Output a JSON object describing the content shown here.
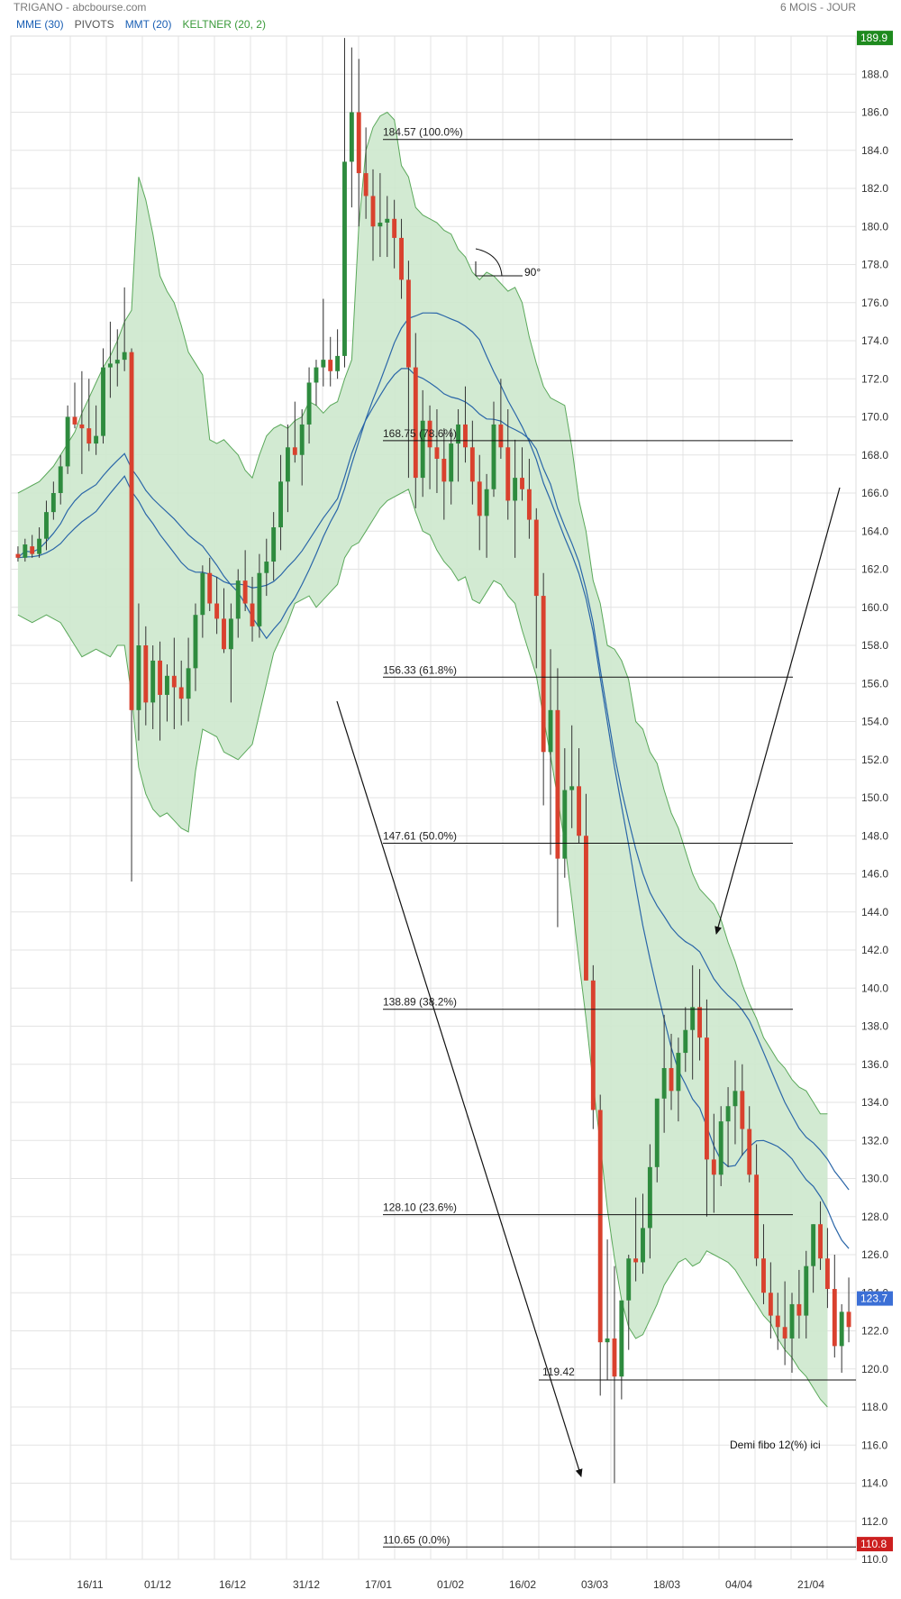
{
  "header": {
    "title": "TRIGANO - abcbourse.com",
    "period": "6 MOIS - JOUR"
  },
  "legend": [
    {
      "label": "MME (30)",
      "color": "#1a5fb4"
    },
    {
      "label": "PIVOTS",
      "color": "#555555"
    },
    {
      "label": "MMT (20)",
      "color": "#1a5fb4"
    },
    {
      "label": "KELTNER (20, 2)",
      "color": "#3a9a3a"
    }
  ],
  "colors": {
    "up": "#2e8b3e",
    "down": "#d9412e",
    "band_fill": "#cde8cd",
    "band_line": "#5aa85a",
    "ma_line": "#2a66a8",
    "grid": "#e3e3e3"
  },
  "chart_data": {
    "type": "candlestick",
    "ylim": [
      110,
      190
    ],
    "x_ticks": [
      "16/11",
      "01/12",
      "16/12",
      "31/12",
      "17/01",
      "01/02",
      "16/02",
      "03/03",
      "18/03",
      "04/04",
      "21/04"
    ],
    "y_ticks": [
      "110.0",
      "112.0",
      "114.0",
      "116.0",
      "118.0",
      "120.0",
      "122.0",
      "124.0",
      "126.0",
      "128.0",
      "130.0",
      "132.0",
      "134.0",
      "136.0",
      "138.0",
      "140.0",
      "142.0",
      "144.0",
      "146.0",
      "148.0",
      "150.0",
      "152.0",
      "154.0",
      "156.0",
      "158.0",
      "160.0",
      "162.0",
      "164.0",
      "166.0",
      "168.0",
      "170.0",
      "172.0",
      "174.0",
      "176.0",
      "178.0",
      "180.0",
      "182.0",
      "184.0",
      "186.0",
      "188.0"
    ],
    "price_badges": [
      {
        "label": "189.9",
        "value": 189.9,
        "color": "#1e8a1e"
      },
      {
        "label": "123.7",
        "value": 123.7,
        "color": "#3b6fd6"
      },
      {
        "label": "110.8",
        "value": 110.8,
        "color": "#cc1f1f"
      }
    ],
    "fib_levels": [
      {
        "value": 184.57,
        "label": "184.57  (100.0%)"
      },
      {
        "value": 168.75,
        "label": "168.75  (78.6%)"
      },
      {
        "value": 156.33,
        "label": "156.33  (61.8%)"
      },
      {
        "value": 147.61,
        "label": "147.61  (50.0%)"
      },
      {
        "value": 138.89,
        "label": "138.89  (38.2%)"
      },
      {
        "value": 128.1,
        "label": "128.10  (23.6%)"
      },
      {
        "value": 110.65,
        "label": "110.65  (0.0%)"
      }
    ],
    "support_line": {
      "value": 119.42,
      "label": "119.42"
    },
    "annotations": {
      "angle_label": "90°",
      "note": "Demi fibo 12(%) ici"
    },
    "candles": [
      [
        162.8,
        163.2,
        162.4,
        162.6
      ],
      [
        162.6,
        163.6,
        162.4,
        163.3
      ],
      [
        163.2,
        163.8,
        162.6,
        162.8
      ],
      [
        162.8,
        164.2,
        162.6,
        163.6
      ],
      [
        163.6,
        165.6,
        163.0,
        165.0
      ],
      [
        165.0,
        166.6,
        164.6,
        166.0
      ],
      [
        166.0,
        168.0,
        165.4,
        167.4
      ],
      [
        167.4,
        170.6,
        167.0,
        170.0
      ],
      [
        170.0,
        171.8,
        169.4,
        169.6
      ],
      [
        169.6,
        172.4,
        167.0,
        169.4
      ],
      [
        169.4,
        172.0,
        168.2,
        168.6
      ],
      [
        168.6,
        170.6,
        168.0,
        169.0
      ],
      [
        169.0,
        173.6,
        168.6,
        172.6
      ],
      [
        172.6,
        175.0,
        171.0,
        172.8
      ],
      [
        172.8,
        174.6,
        171.6,
        173.0
      ],
      [
        173.0,
        176.8,
        172.4,
        173.4
      ],
      [
        173.4,
        173.6,
        145.6,
        154.6
      ],
      [
        154.6,
        160.2,
        153.0,
        158.0
      ],
      [
        158.0,
        159.0,
        153.8,
        155.0
      ],
      [
        155.0,
        158.0,
        153.6,
        157.2
      ],
      [
        157.2,
        158.2,
        153.0,
        155.4
      ],
      [
        155.4,
        157.0,
        154.0,
        156.4
      ],
      [
        156.4,
        158.4,
        153.6,
        155.8
      ],
      [
        155.8,
        157.2,
        153.8,
        155.2
      ],
      [
        155.2,
        158.4,
        154.0,
        156.8
      ],
      [
        156.8,
        160.2,
        155.6,
        159.6
      ],
      [
        159.6,
        162.2,
        158.4,
        161.8
      ],
      [
        161.8,
        162.6,
        159.8,
        160.2
      ],
      [
        160.2,
        161.6,
        158.6,
        159.4
      ],
      [
        159.4,
        161.0,
        157.6,
        157.8
      ],
      [
        157.8,
        160.2,
        155.0,
        159.4
      ],
      [
        159.4,
        162.0,
        158.4,
        161.4
      ],
      [
        161.4,
        163.0,
        159.8,
        160.2
      ],
      [
        160.2,
        161.6,
        158.2,
        159.0
      ],
      [
        159.0,
        162.8,
        158.4,
        161.8
      ],
      [
        161.8,
        163.6,
        160.6,
        162.4
      ],
      [
        162.4,
        165.0,
        161.4,
        164.2
      ],
      [
        164.2,
        168.0,
        163.0,
        166.6
      ],
      [
        166.6,
        169.6,
        165.0,
        168.4
      ],
      [
        168.4,
        170.8,
        167.6,
        168.0
      ],
      [
        168.0,
        170.4,
        166.4,
        169.6
      ],
      [
        169.6,
        172.6,
        168.6,
        171.8
      ],
      [
        171.8,
        173.0,
        170.6,
        172.6
      ],
      [
        172.6,
        176.2,
        171.6,
        173.0
      ],
      [
        173.0,
        174.2,
        171.6,
        172.4
      ],
      [
        172.4,
        174.6,
        172.0,
        173.2
      ],
      [
        173.2,
        189.9,
        172.6,
        183.4
      ],
      [
        183.4,
        189.4,
        181.0,
        186.0
      ],
      [
        186.0,
        188.8,
        180.0,
        182.8
      ],
      [
        182.8,
        185.2,
        180.4,
        181.6
      ],
      [
        181.6,
        183.0,
        178.2,
        180.0
      ],
      [
        180.0,
        182.8,
        178.4,
        180.2
      ],
      [
        180.2,
        181.6,
        178.4,
        180.4
      ],
      [
        180.4,
        181.4,
        177.8,
        179.4
      ],
      [
        179.4,
        180.4,
        176.2,
        177.2
      ],
      [
        177.2,
        178.2,
        166.8,
        172.6
      ],
      [
        172.6,
        174.4,
        165.2,
        166.8
      ],
      [
        166.8,
        171.4,
        165.8,
        169.8
      ],
      [
        169.8,
        170.6,
        166.2,
        168.4
      ],
      [
        168.4,
        170.4,
        166.0,
        167.8
      ],
      [
        167.8,
        169.4,
        164.6,
        166.6
      ],
      [
        166.6,
        169.4,
        165.4,
        168.6
      ],
      [
        168.6,
        170.4,
        166.6,
        169.6
      ],
      [
        169.6,
        171.6,
        167.6,
        168.4
      ],
      [
        168.4,
        169.8,
        165.4,
        166.6
      ],
      [
        166.6,
        168.0,
        163.0,
        164.8
      ],
      [
        164.8,
        167.0,
        162.6,
        166.2
      ],
      [
        166.2,
        170.8,
        165.8,
        169.6
      ],
      [
        169.6,
        172.0,
        167.8,
        168.4
      ],
      [
        168.4,
        170.4,
        164.6,
        165.6
      ],
      [
        165.6,
        168.8,
        162.6,
        166.8
      ],
      [
        166.8,
        168.4,
        165.6,
        166.2
      ],
      [
        166.2,
        167.8,
        163.6,
        164.6
      ],
      [
        164.6,
        165.2,
        156.8,
        160.6
      ],
      [
        160.6,
        161.8,
        149.6,
        152.4
      ],
      [
        152.4,
        157.8,
        147.0,
        154.6
      ],
      [
        154.6,
        156.8,
        143.2,
        146.8
      ],
      [
        146.8,
        152.6,
        145.8,
        150.4
      ],
      [
        150.4,
        153.8,
        148.4,
        150.6
      ],
      [
        150.6,
        152.6,
        147.6,
        148.0
      ],
      [
        148.0,
        150.2,
        140.4,
        140.4
      ],
      [
        140.4,
        141.2,
        132.6,
        133.6
      ],
      [
        133.6,
        134.4,
        118.6,
        121.4
      ],
      [
        121.4,
        126.8,
        119.4,
        121.6
      ],
      [
        121.6,
        125.4,
        114.0,
        119.6
      ],
      [
        119.6,
        123.0,
        118.4,
        123.6
      ],
      [
        123.6,
        126.0,
        121.0,
        125.8
      ],
      [
        125.8,
        129.0,
        124.6,
        125.6
      ],
      [
        125.6,
        129.2,
        125.0,
        127.4
      ],
      [
        127.4,
        131.8,
        125.8,
        130.6
      ],
      [
        130.6,
        133.4,
        129.8,
        134.2
      ],
      [
        134.2,
        138.6,
        132.4,
        135.8
      ],
      [
        135.8,
        137.6,
        133.6,
        134.6
      ],
      [
        134.6,
        137.4,
        133.0,
        136.6
      ],
      [
        136.6,
        139.0,
        135.6,
        137.8
      ],
      [
        137.8,
        141.2,
        135.2,
        139.0
      ],
      [
        139.0,
        141.0,
        136.2,
        137.4
      ],
      [
        137.4,
        139.4,
        128.0,
        131.0
      ],
      [
        131.0,
        133.4,
        128.2,
        130.2
      ],
      [
        130.2,
        133.8,
        129.6,
        133.0
      ],
      [
        133.0,
        134.8,
        130.6,
        133.8
      ],
      [
        133.8,
        136.2,
        131.8,
        134.6
      ],
      [
        134.6,
        136.0,
        131.2,
        132.6
      ],
      [
        132.6,
        133.8,
        129.8,
        130.2
      ],
      [
        130.2,
        131.8,
        125.4,
        125.8
      ],
      [
        125.8,
        127.6,
        123.4,
        124.0
      ],
      [
        124.0,
        125.6,
        121.6,
        122.8
      ],
      [
        122.8,
        124.0,
        121.0,
        122.2
      ],
      [
        122.2,
        124.6,
        120.2,
        121.6
      ],
      [
        121.6,
        124.0,
        119.8,
        123.4
      ],
      [
        123.4,
        125.2,
        121.6,
        122.8
      ],
      [
        122.8,
        126.2,
        121.6,
        125.4
      ],
      [
        125.4,
        127.6,
        124.0,
        127.6
      ],
      [
        127.6,
        128.8,
        125.2,
        125.8
      ],
      [
        125.8,
        127.4,
        123.2,
        124.2
      ],
      [
        124.2,
        126.0,
        120.6,
        121.2
      ],
      [
        121.2,
        123.4,
        119.8,
        123.0
      ],
      [
        123.0,
        124.8,
        121.4,
        122.2
      ]
    ],
    "keltner_upper": [
      166.0,
      166.2,
      166.4,
      166.6,
      167.0,
      167.4,
      168.0,
      168.6,
      169.2,
      170.2,
      171.0,
      171.8,
      172.6,
      173.2,
      174.0,
      175.0,
      175.6,
      182.6,
      181.4,
      179.6,
      177.4,
      176.6,
      176.0,
      174.8,
      173.4,
      172.8,
      172.2,
      168.8,
      168.6,
      168.8,
      168.4,
      168.0,
      167.2,
      166.8,
      168.0,
      169.0,
      169.4,
      169.6,
      169.4,
      169.8,
      170.0,
      170.8,
      170.6,
      170.2,
      170.6,
      170.8,
      172.0,
      173.0,
      180.0,
      184.0,
      185.2,
      185.8,
      186.0,
      185.6,
      183.2,
      182.6,
      181.0,
      180.6,
      180.4,
      180.2,
      179.8,
      179.6,
      178.8,
      178.4,
      177.6,
      177.2,
      177.6,
      177.4,
      177.0,
      176.6,
      176.8,
      176.0,
      174.2,
      172.8,
      171.6,
      171.0,
      170.8,
      170.6,
      168.4,
      165.6,
      164.0,
      161.4,
      160.2,
      158.0,
      157.8,
      157.2,
      156.2,
      154.0,
      153.6,
      152.4,
      151.8,
      150.4,
      149.2,
      148.4,
      147.2,
      146.0,
      145.2,
      144.8,
      144.4,
      143.6,
      142.4,
      141.4,
      140.2,
      139.2,
      138.4,
      137.4,
      136.8,
      136.2,
      135.8,
      135.2,
      134.8,
      134.6,
      134.0,
      133.4,
      133.4
    ],
    "keltner_lower": [
      159.6,
      159.4,
      159.2,
      159.4,
      159.6,
      159.4,
      159.2,
      158.6,
      158.0,
      157.4,
      157.6,
      157.8,
      157.6,
      157.4,
      158.0,
      158.0,
      155.4,
      151.6,
      150.2,
      149.4,
      149.0,
      149.2,
      148.8,
      148.4,
      148.2,
      151.4,
      153.6,
      153.4,
      153.2,
      152.4,
      152.2,
      152.0,
      152.4,
      152.8,
      154.4,
      156.0,
      157.6,
      158.4,
      159.2,
      160.2,
      160.4,
      160.6,
      160.0,
      160.4,
      160.8,
      161.2,
      162.6,
      163.2,
      163.4,
      164.0,
      164.6,
      165.2,
      165.6,
      165.8,
      166.0,
      166.2,
      165.0,
      164.0,
      163.8,
      163.0,
      162.4,
      162.0,
      161.4,
      161.6,
      160.4,
      160.2,
      160.8,
      161.4,
      161.2,
      160.6,
      160.2,
      158.8,
      157.6,
      156.4,
      154.2,
      152.2,
      150.0,
      147.6,
      144.6,
      141.4,
      138.4,
      135.0,
      131.8,
      128.4,
      125.8,
      123.6,
      122.2,
      121.6,
      121.8,
      122.6,
      123.4,
      124.4,
      125.0,
      125.6,
      125.8,
      125.4,
      125.6,
      126.2,
      126.0,
      125.8,
      125.6,
      125.2,
      124.6,
      124.0,
      123.4,
      122.8,
      122.4,
      121.6,
      121.0,
      120.6,
      120.0,
      119.6,
      119.0,
      118.4,
      118.0
    ]
  }
}
